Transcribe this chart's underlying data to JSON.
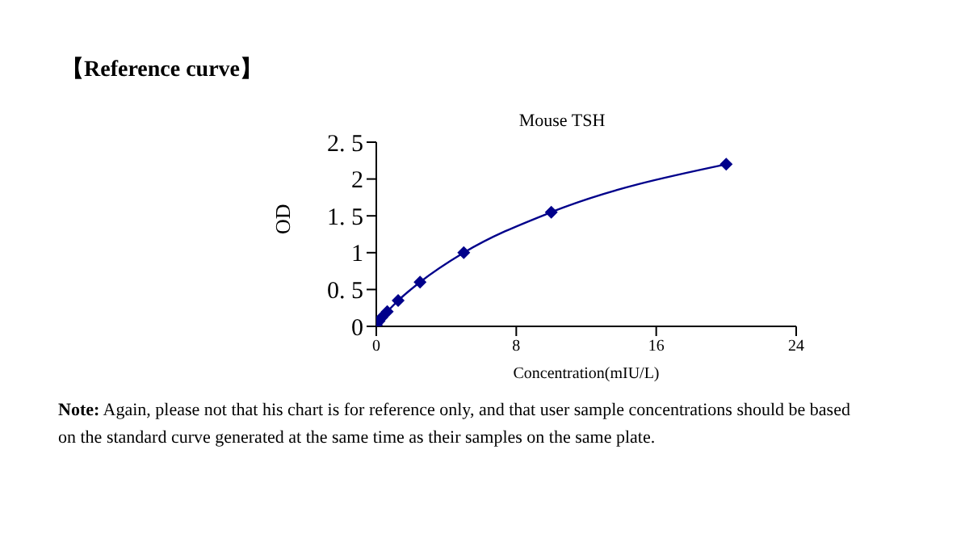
{
  "chart_data": {
    "type": "line",
    "title": "Mouse TSH",
    "xlabel": "Concentration(mIU/L)",
    "ylabel": "OD",
    "annotations": [
      "【Reference curve】",
      "Note: Again, please not that his chart is for reference only, and that user sample concentrations should be based on the standard curve generated at the same time as their samples on the same plate."
    ],
    "x": [
      0,
      0.156,
      0.3125,
      0.625,
      1.25,
      2.5,
      5,
      10,
      20
    ],
    "series": [
      {
        "color": "#00008b",
        "values": [
          0.02,
          0.07,
          0.12,
          0.2,
          0.35,
          0.6,
          1.0,
          1.55,
          2.2
        ]
      }
    ],
    "xlim": [
      0,
      24
    ],
    "xticks": [
      0,
      8,
      16,
      24
    ],
    "ylim": [
      0,
      2.5
    ],
    "yticks": [
      0,
      {
        "value": 0.5,
        "label": "0. 5"
      },
      1,
      {
        "value": 1.5,
        "label": "1. 5"
      },
      2,
      {
        "value": 2.5,
        "label": "2. 5"
      }
    ],
    "marker": "diamond",
    "grid": false,
    "legend": false
  }
}
